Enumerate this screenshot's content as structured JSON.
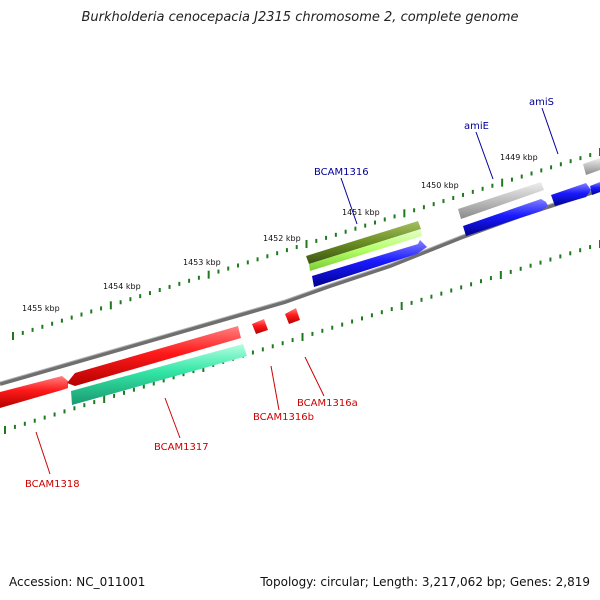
{
  "title": "Burkholderia cenocepacia J2315 chromosome 2, complete genome",
  "footer": {
    "accession": "Accession: NC_011001",
    "summary": "Topology: circular; Length: 3,217,062 bp; Genes: 2,819"
  },
  "colors": {
    "backbone": "#777777",
    "tick": "#1f7a1f",
    "tick_label": "#111111",
    "label_blue": "#000099",
    "label_red": "#cc0000",
    "gene_red": "#ff1a1a",
    "gene_teal": "#33e6a6",
    "gene_blue": "#1a1aff",
    "gene_olive": "#6b8e23",
    "gene_lime": "#b2ff66",
    "gene_grey": "#bdbdbd"
  },
  "kbp_labels": [
    "1455 kbp",
    "1454 kbp",
    "1453 kbp",
    "1452 kbp",
    "1451 kbp",
    "1450 kbp",
    "1449 kbp"
  ],
  "gene_labels": {
    "amiS": "amiS",
    "amiE": "amiE",
    "BCAM1316": "BCAM1316",
    "BCAM1316a": "BCAM1316a",
    "BCAM1316b": "BCAM1316b",
    "BCAM1317": "BCAM1317",
    "BCAM1318": "BCAM1318"
  }
}
